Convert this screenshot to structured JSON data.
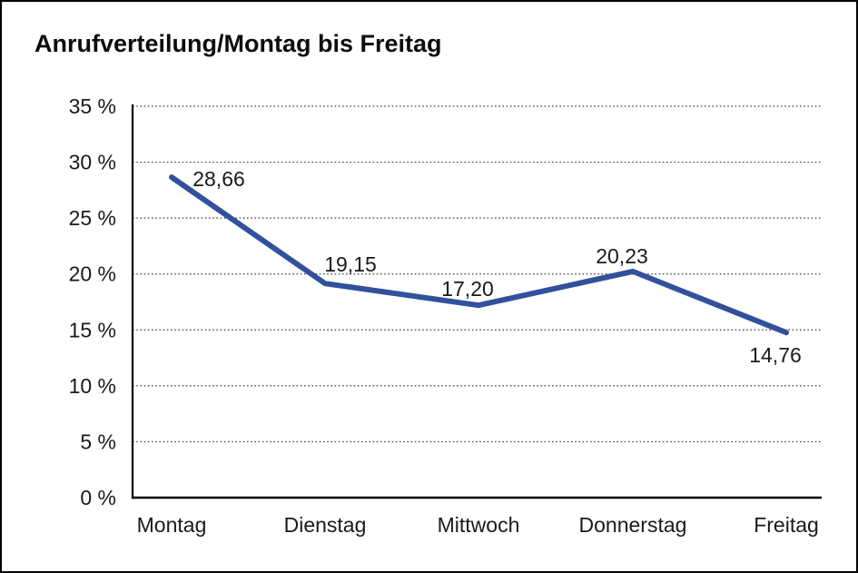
{
  "window": {
    "background_color": "#ffffff",
    "frame_border_color": "#000000"
  },
  "chart_data": {
    "type": "line",
    "title": "Anrufverteilung/Montag bis Freitag",
    "categories": [
      "Montag",
      "Dienstag",
      "Mittwoch",
      "Donnerstag",
      "Freitag"
    ],
    "values": [
      28.66,
      19.15,
      17.2,
      20.23,
      14.76
    ],
    "value_labels": [
      "28,66",
      "19,15",
      "17,20",
      "20,23",
      "14,76"
    ],
    "xlabel": "",
    "ylabel": "",
    "y_ticks": [
      "0 %",
      "5 %",
      "10 %",
      "15 %",
      "20 %",
      "25 %",
      "30 %",
      "35 %"
    ],
    "y_tick_step": 5,
    "ylim": [
      0,
      35
    ],
    "grid": "horizontal-dotted",
    "legend": "none",
    "line_color": "#32519C",
    "text_color": "#1a1a1a"
  }
}
